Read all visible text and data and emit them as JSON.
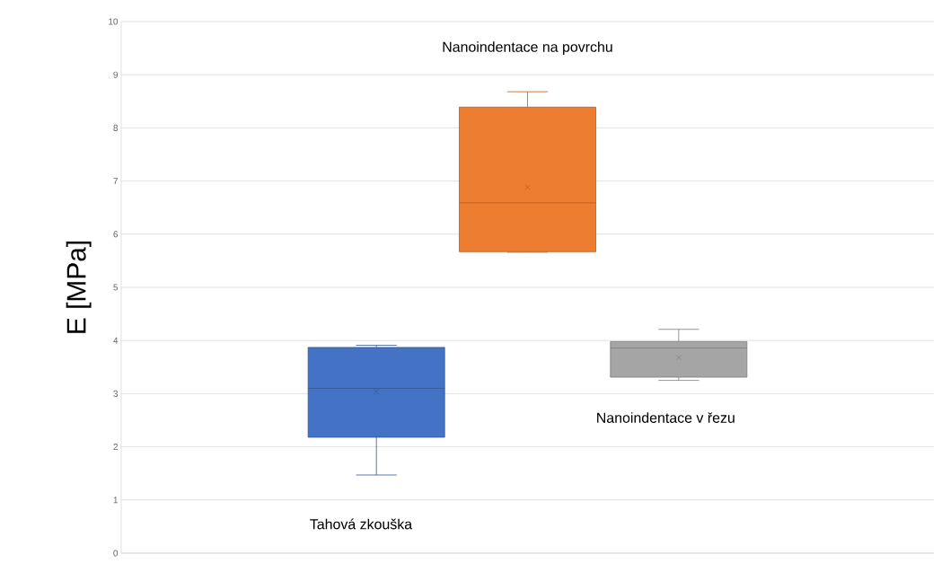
{
  "chart_data": {
    "type": "box",
    "ylabel": "E [MPa]",
    "categories": [
      null
    ],
    "series": [
      {
        "color": "#4472c4",
        "boxes": [
          {
            "low": 1.47,
            "q1": 2.18,
            "median": 3.1,
            "q3": 3.87,
            "high": 3.91,
            "mean": 3.04
          }
        ]
      },
      {
        "color": "#ed7d31",
        "boxes": [
          {
            "low": 5.66,
            "q1": 5.67,
            "median": 6.59,
            "q3": 8.39,
            "high": 8.68,
            "mean": 6.88
          }
        ]
      },
      {
        "color": "#a5a5a5",
        "boxes": [
          {
            "low": 3.25,
            "q1": 3.31,
            "median": 3.86,
            "q3": 3.98,
            "high": 4.21,
            "mean": 3.68
          }
        ]
      }
    ],
    "ylim": [
      0,
      10
    ],
    "yticks": [
      0,
      1,
      2,
      3,
      4,
      5,
      6,
      7,
      8,
      9,
      10
    ],
    "grid": "y",
    "tick_labels": "y",
    "annotations": [
      "Tahová zkouška",
      "Nanoindentace na povrchu",
      "Nanoindentace v řezu"
    ]
  }
}
